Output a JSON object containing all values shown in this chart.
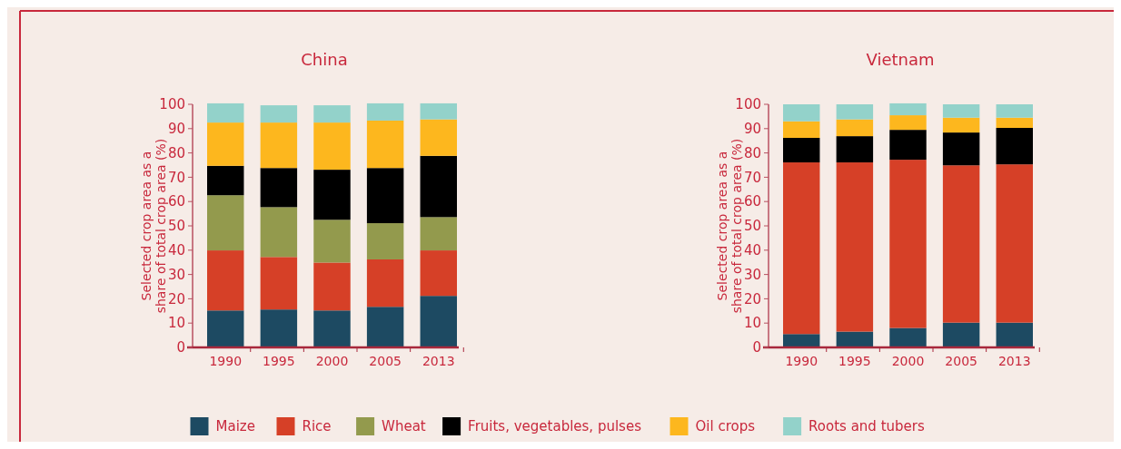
{
  "chart_data": [
    {
      "type": "bar",
      "title": "China",
      "ylabel": "Selected crop area as a share of total crop area (%)",
      "categories": [
        "1990",
        "1995",
        "2000",
        "2005",
        "2013"
      ],
      "stacked": true,
      "ylim": [
        0,
        100
      ],
      "yticks": [
        0,
        10,
        20,
        30,
        40,
        50,
        60,
        70,
        80,
        90,
        100
      ],
      "legend": "bottom",
      "series": [
        {
          "name": "Maize",
          "color": "#1d4a62",
          "values": [
            15.2,
            15.6,
            15.2,
            16.7,
            21.2
          ]
        },
        {
          "name": "Rice",
          "color": "#d64027",
          "values": [
            24.7,
            21.6,
            19.7,
            19.5,
            18.7
          ]
        },
        {
          "name": "Wheat",
          "color": "#939a4d",
          "values": [
            22.7,
            20.5,
            17.6,
            14.9,
            13.7
          ]
        },
        {
          "name": "Fruits, vegetables, pulses",
          "color": "#000000",
          "values": [
            12.1,
            16.1,
            20.6,
            22.7,
            25.2
          ]
        },
        {
          "name": "Oil crops",
          "color": "#fdb71e",
          "values": [
            17.8,
            18.7,
            19.4,
            19.5,
            15.0
          ]
        },
        {
          "name": "Roots and tubers",
          "color": "#93d2ca",
          "values": [
            7.9,
            7.1,
            7.1,
            7.1,
            6.6
          ]
        }
      ]
    },
    {
      "type": "bar",
      "title": "Vietnam",
      "ylabel": "Selected crop area as a share of total crop area (%)",
      "categories": [
        "1990",
        "1995",
        "2000",
        "2005",
        "2013"
      ],
      "stacked": true,
      "ylim": [
        0,
        100
      ],
      "yticks": [
        0,
        10,
        20,
        30,
        40,
        50,
        60,
        70,
        80,
        90,
        100
      ],
      "legend": "bottom",
      "series": [
        {
          "name": "Maize",
          "color": "#1d4a62",
          "values": [
            5.5,
            6.5,
            8.0,
            10.2,
            10.2
          ]
        },
        {
          "name": "Rice",
          "color": "#d64027",
          "values": [
            70.6,
            69.6,
            69.2,
            64.7,
            65.1
          ]
        },
        {
          "name": "Wheat",
          "color": "#939a4d",
          "values": [
            0,
            0,
            0,
            0,
            0
          ]
        },
        {
          "name": "Fruits, vegetables, pulses",
          "color": "#000000",
          "values": [
            10.1,
            10.8,
            12.3,
            13.5,
            15.0
          ]
        },
        {
          "name": "Oil crops",
          "color": "#fdb71e",
          "values": [
            6.8,
            6.9,
            6.0,
            6.1,
            4.2
          ]
        },
        {
          "name": "Roots and tubers",
          "color": "#93d2ca",
          "values": [
            7.0,
            6.2,
            4.9,
            5.5,
            5.5
          ]
        }
      ]
    }
  ]
}
